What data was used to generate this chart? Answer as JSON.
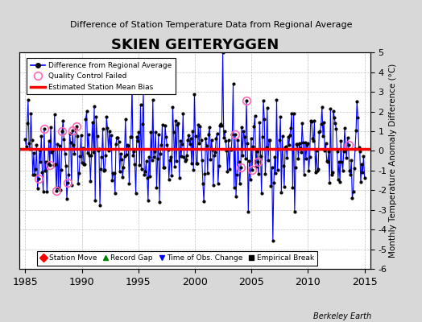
{
  "title": "SKIEN GEITERYGGEN",
  "subtitle": "Difference of Station Temperature Data from Regional Average",
  "ylabel": "Monthly Temperature Anomaly Difference (°C)",
  "xlabel_years": [
    1985,
    1990,
    1995,
    2000,
    2005,
    2010,
    2015
  ],
  "ylim": [
    -6,
    5
  ],
  "yticks": [
    -6,
    -5,
    -4,
    -3,
    -2,
    -1,
    0,
    1,
    2,
    3,
    4,
    5
  ],
  "mean_bias": 0.1,
  "line_color": "#0000FF",
  "bias_color": "#FF0000",
  "dot_color": "#000000",
  "qc_color": "#FF69B4",
  "background_color": "#E8E8E8",
  "plot_bg_color": "#FFFFFF",
  "watermark": "Berkeley Earth",
  "legend1_items": [
    {
      "label": "Difference from Regional Average",
      "color": "#0000FF",
      "marker": "o",
      "markercolor": "#000000"
    },
    {
      "label": "Quality Control Failed",
      "color": "#FF69B4",
      "marker": "o"
    },
    {
      "label": "Estimated Station Mean Bias",
      "color": "#FF0000"
    }
  ],
  "legend2_items": [
    {
      "label": "Station Move",
      "color": "#FF0000",
      "marker": "D"
    },
    {
      "label": "Record Gap",
      "color": "#008000",
      "marker": "^"
    },
    {
      "label": "Time of Obs. Change",
      "color": "#0000FF",
      "marker": "v"
    },
    {
      "label": "Empirical Break",
      "color": "#000000",
      "marker": "s"
    }
  ],
  "seed": 42,
  "num_years": 30,
  "start_year": 1985
}
